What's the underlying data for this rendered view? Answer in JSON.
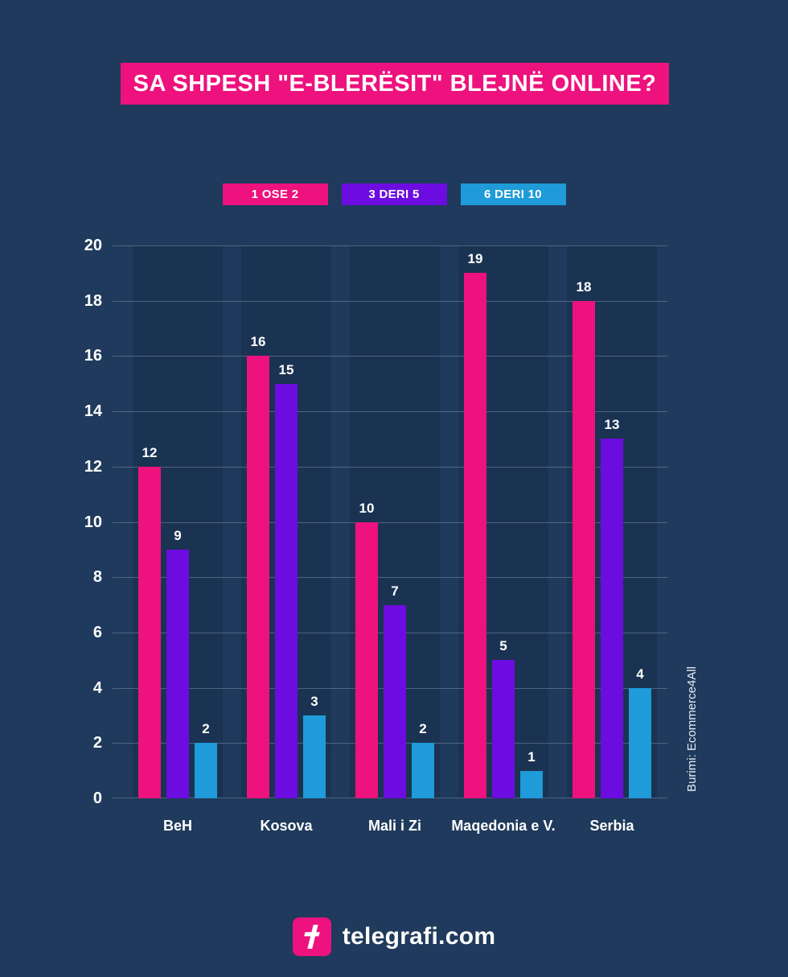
{
  "colors": {
    "background": "#1f3a5c",
    "band": "#1b3352",
    "grid": "rgba(168,190,212,0.35)",
    "accent_pink": "#ed127d",
    "purple": "#6d0ce0",
    "blue": "#1e9bd8",
    "text": "#ffffff"
  },
  "chart_data": {
    "type": "bar",
    "title": "SA SHPESH \"E-BLERËSIT\" BLEJNË ONLINE?",
    "categories": [
      "BeH",
      "Kosova",
      "Mali i Zi",
      "Maqedonia e V.",
      "Serbia"
    ],
    "series": [
      {
        "name": "1 OSE 2",
        "color": "#ed127d",
        "values": [
          12,
          16,
          10,
          19,
          18
        ]
      },
      {
        "name": "3 DERI 5",
        "color": "#6d0ce0",
        "values": [
          9,
          15,
          7,
          5,
          13
        ]
      },
      {
        "name": "6 DERI 10",
        "color": "#1e9bd8",
        "values": [
          2,
          3,
          2,
          1,
          4
        ]
      }
    ],
    "ylim": [
      0,
      20
    ],
    "yticks": [
      0,
      2,
      4,
      6,
      8,
      10,
      12,
      14,
      16,
      18,
      20
    ],
    "xlabel": "",
    "ylabel": "",
    "grid": "horizontal",
    "legend_position": "top",
    "value_labels": true,
    "source": "Burimi: Ecommerce4All"
  },
  "footer": {
    "brand": "telegrafi.com",
    "logo_icon": "telegrafi-t-icon"
  }
}
